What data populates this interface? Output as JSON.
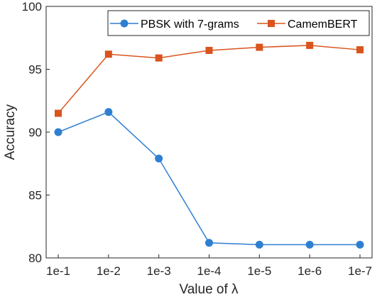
{
  "chart_data": {
    "type": "line",
    "categories": [
      "1e-1",
      "1e-2",
      "1e-3",
      "1e-4",
      "1e-5",
      "1e-6",
      "1e-7"
    ],
    "xlabel": "Value of λ",
    "ylabel": "Accuracy",
    "ylim": [
      80,
      100
    ],
    "yticks": [
      80,
      85,
      90,
      95,
      100
    ],
    "grid": false,
    "legend_position": "top-right",
    "series": [
      {
        "name": "PBSK with 7-grams",
        "color": "#2f7fd1",
        "marker": "circle",
        "values": [
          90.0,
          91.6,
          87.9,
          81.2,
          81.05,
          81.05,
          81.05
        ]
      },
      {
        "name": "CamemBERT",
        "color": "#d9541e",
        "marker": "square",
        "values": [
          91.5,
          96.2,
          95.9,
          96.5,
          96.75,
          96.9,
          96.55
        ]
      }
    ]
  }
}
